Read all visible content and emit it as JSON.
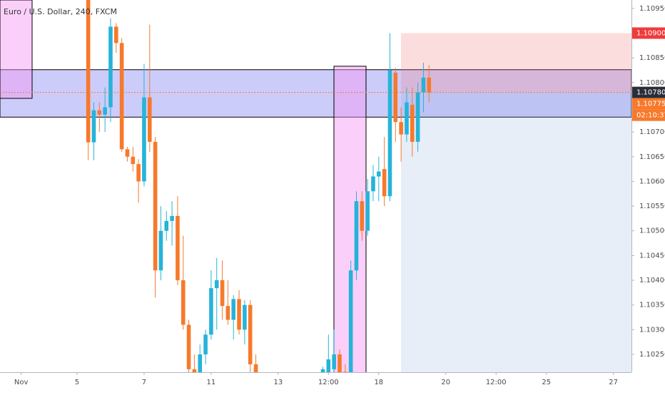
{
  "chart_data": {
    "type": "candlestick",
    "title": "Euro / U.S. Dollar, 240, FXCM",
    "categories": [
      null,
      null,
      null,
      "Nov",
      null,
      null,
      null,
      null,
      null,
      null,
      null,
      null,
      null,
      "5",
      null,
      null,
      null,
      null,
      null,
      null,
      null,
      null,
      null,
      null,
      null,
      "7",
      null,
      null,
      null,
      null,
      null,
      null,
      null,
      null,
      null,
      null,
      null,
      "11",
      null,
      null,
      null,
      null,
      null,
      null,
      null,
      null,
      null,
      null,
      null,
      "13",
      null,
      null,
      null,
      null,
      null,
      null,
      null,
      null,
      "12:00",
      null,
      null,
      null,
      null,
      null,
      null,
      null,
      null,
      "18",
      null,
      null,
      null,
      null,
      null,
      null,
      null,
      null,
      null,
      null,
      null,
      "20",
      null,
      null,
      null,
      null,
      null,
      null,
      null,
      null,
      "12:00",
      null,
      null,
      null,
      null,
      null,
      null,
      null,
      null,
      "25",
      null,
      null,
      null,
      null,
      null,
      null,
      null,
      null,
      null,
      null,
      null,
      "27",
      null,
      null,
      null
    ],
    "open": [
      null,
      null,
      null,
      null,
      null,
      null,
      null,
      null,
      null,
      null,
      null,
      null,
      null,
      null,
      null,
      1.1098,
      1.10679,
      1.10744,
      1.10735,
      1.1075,
      1.10913,
      1.1088,
      1.10665,
      1.1065,
      1.10635,
      1.106,
      1.1077,
      1.1068,
      1.1042,
      1.105,
      1.1052,
      1.1053,
      1.104,
      1.1031,
      1.1022,
      1.1018,
      1.1025,
      1.1029,
      1.10384,
      1.104,
      1.10348,
      1.1032,
      1.10362,
      1.103,
      1.1035,
      1.1023,
      null,
      null,
      null,
      null,
      null,
      null,
      null,
      null,
      null,
      null,
      null,
      1.102,
      1.1021,
      1.1022,
      1.1025,
      1.10215,
      1.1019,
      1.1042,
      1.1056,
      1.105,
      1.1058,
      1.1061,
      1.10625,
      1.1057,
      1.1082,
      1.1072,
      1.10695,
      1.10755,
      1.1068,
      1.1078,
      1.1081,
      null,
      null,
      null,
      null,
      null,
      null,
      null,
      null,
      null,
      null,
      null,
      null,
      null,
      null,
      null,
      null,
      null,
      null,
      null,
      null,
      null,
      null,
      null,
      null,
      null,
      null,
      null,
      null,
      null,
      null,
      null,
      null,
      null,
      null,
      null,
      null
    ],
    "high": [
      null,
      null,
      null,
      null,
      null,
      null,
      null,
      null,
      null,
      null,
      null,
      null,
      null,
      null,
      null,
      1.1099,
      1.1076,
      1.1076,
      1.1079,
      1.1093,
      1.1092,
      1.1089,
      1.1067,
      1.1067,
      1.10645,
      1.10838,
      1.10917,
      1.1069,
      1.1055,
      1.1054,
      1.1056,
      1.1057,
      1.1049,
      1.1032,
      1.1025,
      1.1027,
      1.103,
      1.1042,
      1.10445,
      1.1044,
      1.104,
      1.1037,
      1.1038,
      1.1036,
      1.1036,
      1.1025,
      null,
      null,
      null,
      null,
      null,
      null,
      null,
      null,
      null,
      null,
      null,
      1.10225,
      1.1029,
      1.103,
      1.1026,
      1.1023,
      1.1044,
      1.1058,
      1.1058,
      1.10605,
      1.10633,
      1.1065,
      1.1069,
      1.109,
      1.1083,
      1.1075,
      1.1079,
      1.1079,
      1.108,
      1.1084,
      1.10835,
      null,
      null,
      null,
      null,
      null,
      null,
      null,
      null,
      null,
      null,
      null,
      null,
      null,
      null,
      null,
      null,
      null,
      null,
      null,
      null,
      null,
      null,
      null,
      null,
      null,
      null,
      null,
      null,
      null,
      null,
      null,
      null,
      null,
      null,
      null,
      null
    ],
    "low": [
      null,
      null,
      null,
      null,
      null,
      null,
      null,
      null,
      null,
      null,
      null,
      null,
      null,
      null,
      null,
      1.10643,
      1.10643,
      1.107,
      1.107,
      1.1072,
      1.1086,
      1.1066,
      1.1064,
      1.1062,
      1.10557,
      1.1059,
      1.1066,
      1.10365,
      1.104,
      1.1048,
      1.1047,
      1.1039,
      1.103,
      1.1021,
      1.1016,
      1.1017,
      1.1023,
      1.1028,
      1.103,
      1.1032,
      1.1031,
      1.1028,
      1.1029,
      1.1027,
      1.102,
      1.1017,
      null,
      null,
      null,
      null,
      null,
      null,
      null,
      null,
      null,
      null,
      null,
      1.1019,
      1.102,
      1.102,
      1.1018,
      1.1017,
      1.1018,
      1.104,
      1.1048,
      1.1049,
      1.1056,
      1.1056,
      1.1055,
      1.1056,
      1.1068,
      1.1064,
      1.1068,
      1.1065,
      1.1066,
      1.1074,
      1.1076,
      null,
      null,
      null,
      null,
      null,
      null,
      null,
      null,
      null,
      null,
      null,
      null,
      null,
      null,
      null,
      null,
      null,
      null,
      null,
      null,
      null,
      null,
      null,
      null,
      null,
      null,
      null,
      null,
      null,
      null,
      null,
      null,
      null,
      null,
      null,
      null
    ],
    "close": [
      null,
      null,
      null,
      null,
      null,
      null,
      null,
      null,
      null,
      null,
      null,
      null,
      null,
      null,
      null,
      1.10679,
      1.10744,
      1.10735,
      1.1075,
      1.10913,
      1.1088,
      1.10665,
      1.1065,
      1.10635,
      1.106,
      1.1077,
      1.1068,
      1.1042,
      1.105,
      1.1052,
      1.1053,
      1.104,
      1.1031,
      1.1022,
      1.1018,
      1.1025,
      1.1029,
      1.10384,
      1.104,
      1.10348,
      1.1032,
      1.10362,
      1.103,
      1.1035,
      1.1023,
      1.1019,
      null,
      null,
      null,
      null,
      null,
      null,
      null,
      null,
      null,
      null,
      null,
      1.1022,
      1.1024,
      1.1025,
      1.1021,
      1.1019,
      1.1042,
      1.1056,
      1.105,
      1.1058,
      1.1061,
      1.1062,
      1.1057,
      1.10825,
      1.1072,
      1.10695,
      1.1076,
      1.1068,
      1.1078,
      1.1081,
      1.1078,
      null,
      null,
      null,
      null,
      null,
      null,
      null,
      null,
      null,
      null,
      null,
      null,
      null,
      null,
      null,
      null,
      null,
      null,
      null,
      null,
      null,
      null,
      null,
      null,
      null,
      null,
      null,
      null,
      null,
      null,
      null,
      null,
      null,
      null,
      null,
      null
    ],
    "up_color": "#26b3d9",
    "down_color": "#f7792b",
    "ylim": [
      1.10214,
      1.10967
    ],
    "yticks": [
      {
        "value": 1.1095,
        "label": "1.10950"
      },
      {
        "value": 1.1085,
        "label": "1.10850"
      },
      {
        "value": 1.108,
        "label": "1.10800"
      },
      {
        "value": 1.107,
        "label": "1.10700"
      },
      {
        "value": 1.1065,
        "label": "1.10650"
      },
      {
        "value": 1.106,
        "label": "1.10600"
      },
      {
        "value": 1.1055,
        "label": "1.10550"
      },
      {
        "value": 1.105,
        "label": "1.10500"
      },
      {
        "value": 1.1045,
        "label": "1.10450"
      },
      {
        "value": 1.104,
        "label": "1.10400"
      },
      {
        "value": 1.1035,
        "label": "1.10350"
      },
      {
        "value": 1.103,
        "label": "1.10300"
      },
      {
        "value": 1.1025,
        "label": "1.10250"
      }
    ],
    "zones": [
      {
        "top": 1.10826,
        "bottom": 1.1073,
        "color": "rgba(110,110,240,0.35)",
        "stroke": "#000000"
      },
      {
        "top": 1.10967,
        "bottom": 1.10768,
        "color": "rgba(245,150,245,0.45)",
        "stroke": "#000000"
      },
      {
        "top": 1.10833,
        "bottom": 1.102,
        "color": "rgba(245,150,245,0.45)",
        "stroke": "#000000"
      },
      {
        "top": 1.109,
        "bottom": 1.1078,
        "color": "rgba(245,120,120,0.25)",
        "stroke": "none"
      },
      {
        "top": 1.1078,
        "bottom": 1.102,
        "color": "rgba(120,160,210,0.18)",
        "stroke": "none"
      }
    ],
    "last_price": 1.1078,
    "price_labels": [
      {
        "value": 1.109,
        "label": "1.10900",
        "color": "#ef3b3b"
      },
      {
        "value": 1.1078,
        "label": "1.10780",
        "color": "#2a2e39"
      },
      {
        "value": 1.10775,
        "label": "1.10775",
        "color": "#f7792b"
      }
    ],
    "countdown": "02:10:37"
  }
}
